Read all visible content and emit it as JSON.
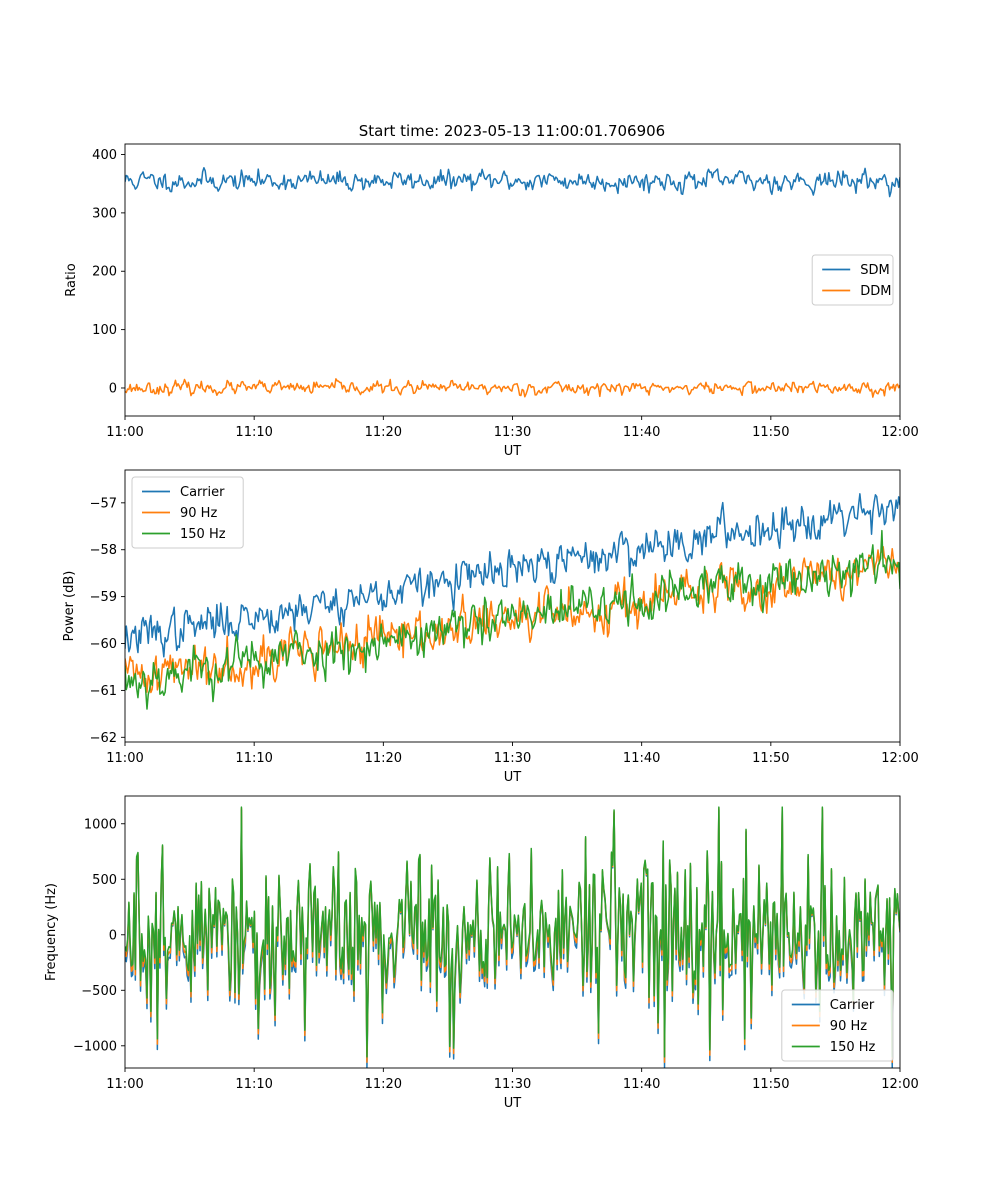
{
  "title": "Start time: 2023-05-13 11:00:01.706906",
  "colors": {
    "blue": "#1f77b4",
    "orange": "#ff7f0e",
    "green": "#2ca02c"
  },
  "chart_data": [
    {
      "type": "line",
      "ylabel": "Ratio",
      "xlabel": "UT",
      "xlim": [
        "11:00",
        "12:00"
      ],
      "xticks": [
        "11:00",
        "11:10",
        "11:20",
        "11:30",
        "11:40",
        "11:50",
        "12:00"
      ],
      "ylim": [
        -48,
        418
      ],
      "yticks": [
        0,
        100,
        200,
        300,
        400
      ],
      "ytick_labels": [
        "0",
        "100",
        "200",
        "300",
        "400"
      ],
      "legend": {
        "location": "center-right",
        "entries": [
          "SDM",
          "DDM"
        ]
      },
      "series": [
        {
          "name": "SDM",
          "color": "#1f77b4",
          "mean_start": 355,
          "mean_end": 355,
          "noise": 14,
          "spike_level": 395,
          "seed": 11
        },
        {
          "name": "DDM",
          "color": "#ff7f0e",
          "mean_start": 0,
          "mean_end": 0,
          "noise": 9,
          "spike_level": -28,
          "seed": 23
        }
      ]
    },
    {
      "type": "line",
      "ylabel": "Power (dB)",
      "xlabel": "UT",
      "xlim": [
        "11:00",
        "12:00"
      ],
      "xticks": [
        "11:00",
        "11:10",
        "11:20",
        "11:30",
        "11:40",
        "11:50",
        "12:00"
      ],
      "ylim": [
        -62.1,
        -56.3
      ],
      "yticks": [
        -62,
        -61,
        -60,
        -59,
        -58,
        -57
      ],
      "ytick_labels": [
        "−62",
        "−61",
        "−60",
        "−59",
        "−58",
        "−57"
      ],
      "legend": {
        "location": "upper-left",
        "entries": [
          "Carrier",
          "90 Hz",
          "150 Hz"
        ]
      },
      "series": [
        {
          "name": "Carrier",
          "color": "#1f77b4",
          "mean_start": -59.9,
          "mean_end": -57.0,
          "noise": 0.35,
          "seed": 37
        },
        {
          "name": "90 Hz",
          "color": "#ff7f0e",
          "mean_start": -60.7,
          "mean_end": -58.3,
          "noise": 0.42,
          "seed": 41
        },
        {
          "name": "150 Hz",
          "color": "#2ca02c",
          "mean_start": -60.8,
          "mean_end": -58.2,
          "noise": 0.42,
          "seed": 53
        }
      ]
    },
    {
      "type": "line",
      "ylabel": "Frequency (Hz)",
      "xlabel": "UT",
      "xlim": [
        "11:00",
        "12:00"
      ],
      "xticks": [
        "11:00",
        "11:10",
        "11:20",
        "11:30",
        "11:40",
        "11:50",
        "12:00"
      ],
      "ylim": [
        -1200,
        1250
      ],
      "yticks": [
        -1000,
        -500,
        0,
        500,
        1000
      ],
      "ytick_labels": [
        "−1000",
        "−500",
        "0",
        "500",
        "1000"
      ],
      "legend": {
        "location": "lower-right",
        "entries": [
          "Carrier",
          "90 Hz",
          "150 Hz"
        ]
      },
      "series": [
        {
          "name": "Carrier",
          "color": "#1f77b4",
          "offset": -60
        },
        {
          "name": "90 Hz",
          "color": "#ff7f0e",
          "offset": -30
        },
        {
          "name": "150 Hz",
          "color": "#2ca02c",
          "offset": 0
        }
      ],
      "base_signal": {
        "mean": 0,
        "noise": 380,
        "range": [
          -1100,
          1150
        ],
        "seed": 71
      }
    }
  ]
}
